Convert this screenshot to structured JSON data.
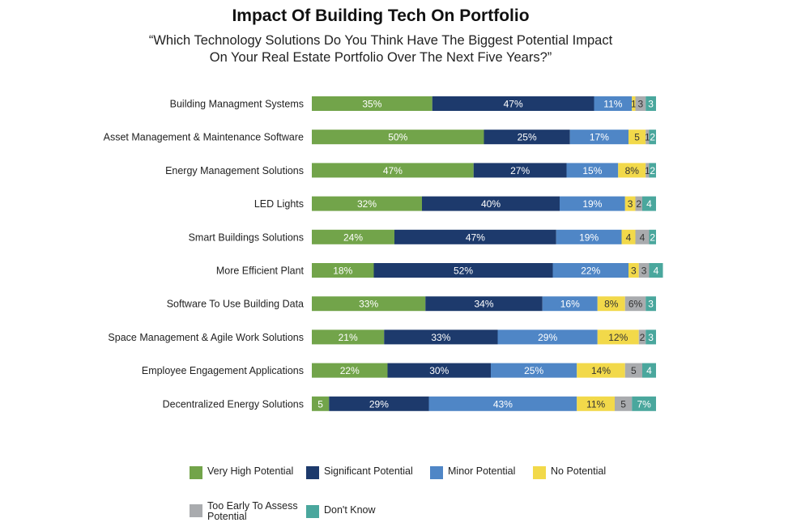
{
  "chart_data": {
    "type": "bar",
    "orientation": "horizontal",
    "stacked": true,
    "title": "Impact Of Building Tech On Portfolio",
    "subtitle_lines": [
      "“Which Technology Solutions Do You Think Have The Biggest Potential Impact",
      "On Your Real Estate Portfolio Over The Next Five Years?”"
    ],
    "xlim": [
      0,
      100
    ],
    "grid": false,
    "legend_position": "bottom",
    "categories": [
      "Building Managment Systems",
      "Asset Management & Maintenance Software",
      "Energy Management Solutions",
      "LED Lights",
      "Smart Buildings Solutions",
      "More Efficient Plant",
      "Software To Use Building Data",
      "Space Management & Agile Work Solutions",
      "Employee Engagement Applications",
      "Decentralized Energy Solutions"
    ],
    "series": [
      {
        "name": "Very High Potential",
        "color": "#72a44a",
        "label_color": "#ffffff",
        "values": [
          35,
          50,
          47,
          32,
          24,
          18,
          33,
          21,
          22,
          5
        ],
        "labels": [
          "35%",
          "50%",
          "47%",
          "32%",
          "24%",
          "18%",
          "33%",
          "21%",
          "22%",
          "5"
        ]
      },
      {
        "name": "Significant Potential",
        "color": "#1d3a6c",
        "label_color": "#ffffff",
        "values": [
          47,
          25,
          27,
          40,
          47,
          52,
          34,
          33,
          30,
          29
        ],
        "labels": [
          "47%",
          "25%",
          "27%",
          "40%",
          "47%",
          "52%",
          "34%",
          "33%",
          "30%",
          "29%"
        ]
      },
      {
        "name": "Minor Potential",
        "color": "#4f86c6",
        "label_color": "#ffffff",
        "values": [
          11,
          17,
          15,
          19,
          19,
          22,
          16,
          29,
          25,
          43
        ],
        "labels": [
          "11%",
          "17%",
          "15%",
          "19%",
          "19%",
          "22%",
          "16%",
          "29%",
          "25%",
          "43%"
        ]
      },
      {
        "name": "No Potential",
        "color": "#f2d94a",
        "label_color": "#333333",
        "values": [
          1,
          5,
          8,
          3,
          4,
          3,
          8,
          12,
          14,
          11
        ],
        "labels": [
          "1",
          "5",
          "8%",
          "3",
          "4",
          "3",
          "8%",
          "12%",
          "14%",
          "11%"
        ]
      },
      {
        "name": "Too Early To Assess Potential",
        "color": "#a9abae",
        "label_color": "#333333",
        "values": [
          3,
          1,
          1,
          2,
          4,
          3,
          6,
          2,
          5,
          5
        ],
        "labels": [
          "3",
          "1",
          "1",
          "2",
          "4",
          "3",
          "6%",
          "2",
          "5",
          "5"
        ]
      },
      {
        "name": "Don't Know",
        "color": "#4aa79d",
        "label_color": "#ffffff",
        "values": [
          3,
          2,
          2,
          4,
          2,
          4,
          3,
          3,
          4,
          7
        ],
        "labels": [
          "3",
          "2",
          "2",
          "4",
          "2",
          "4",
          "3",
          "3",
          "4",
          "7%"
        ]
      }
    ]
  },
  "legend": {
    "items": [
      {
        "label": "Very High Potential",
        "color": "#72a44a"
      },
      {
        "label": "Significant Potential",
        "color": "#1d3a6c"
      },
      {
        "label": "Minor Potential",
        "color": "#4f86c6"
      },
      {
        "label": "No Potential",
        "color": "#f2d94a"
      },
      {
        "label_lines": [
          "Too Early To Assess",
          "Potential"
        ],
        "color": "#a9abae"
      },
      {
        "label": "Don't Know",
        "color": "#4aa79d"
      }
    ]
  }
}
